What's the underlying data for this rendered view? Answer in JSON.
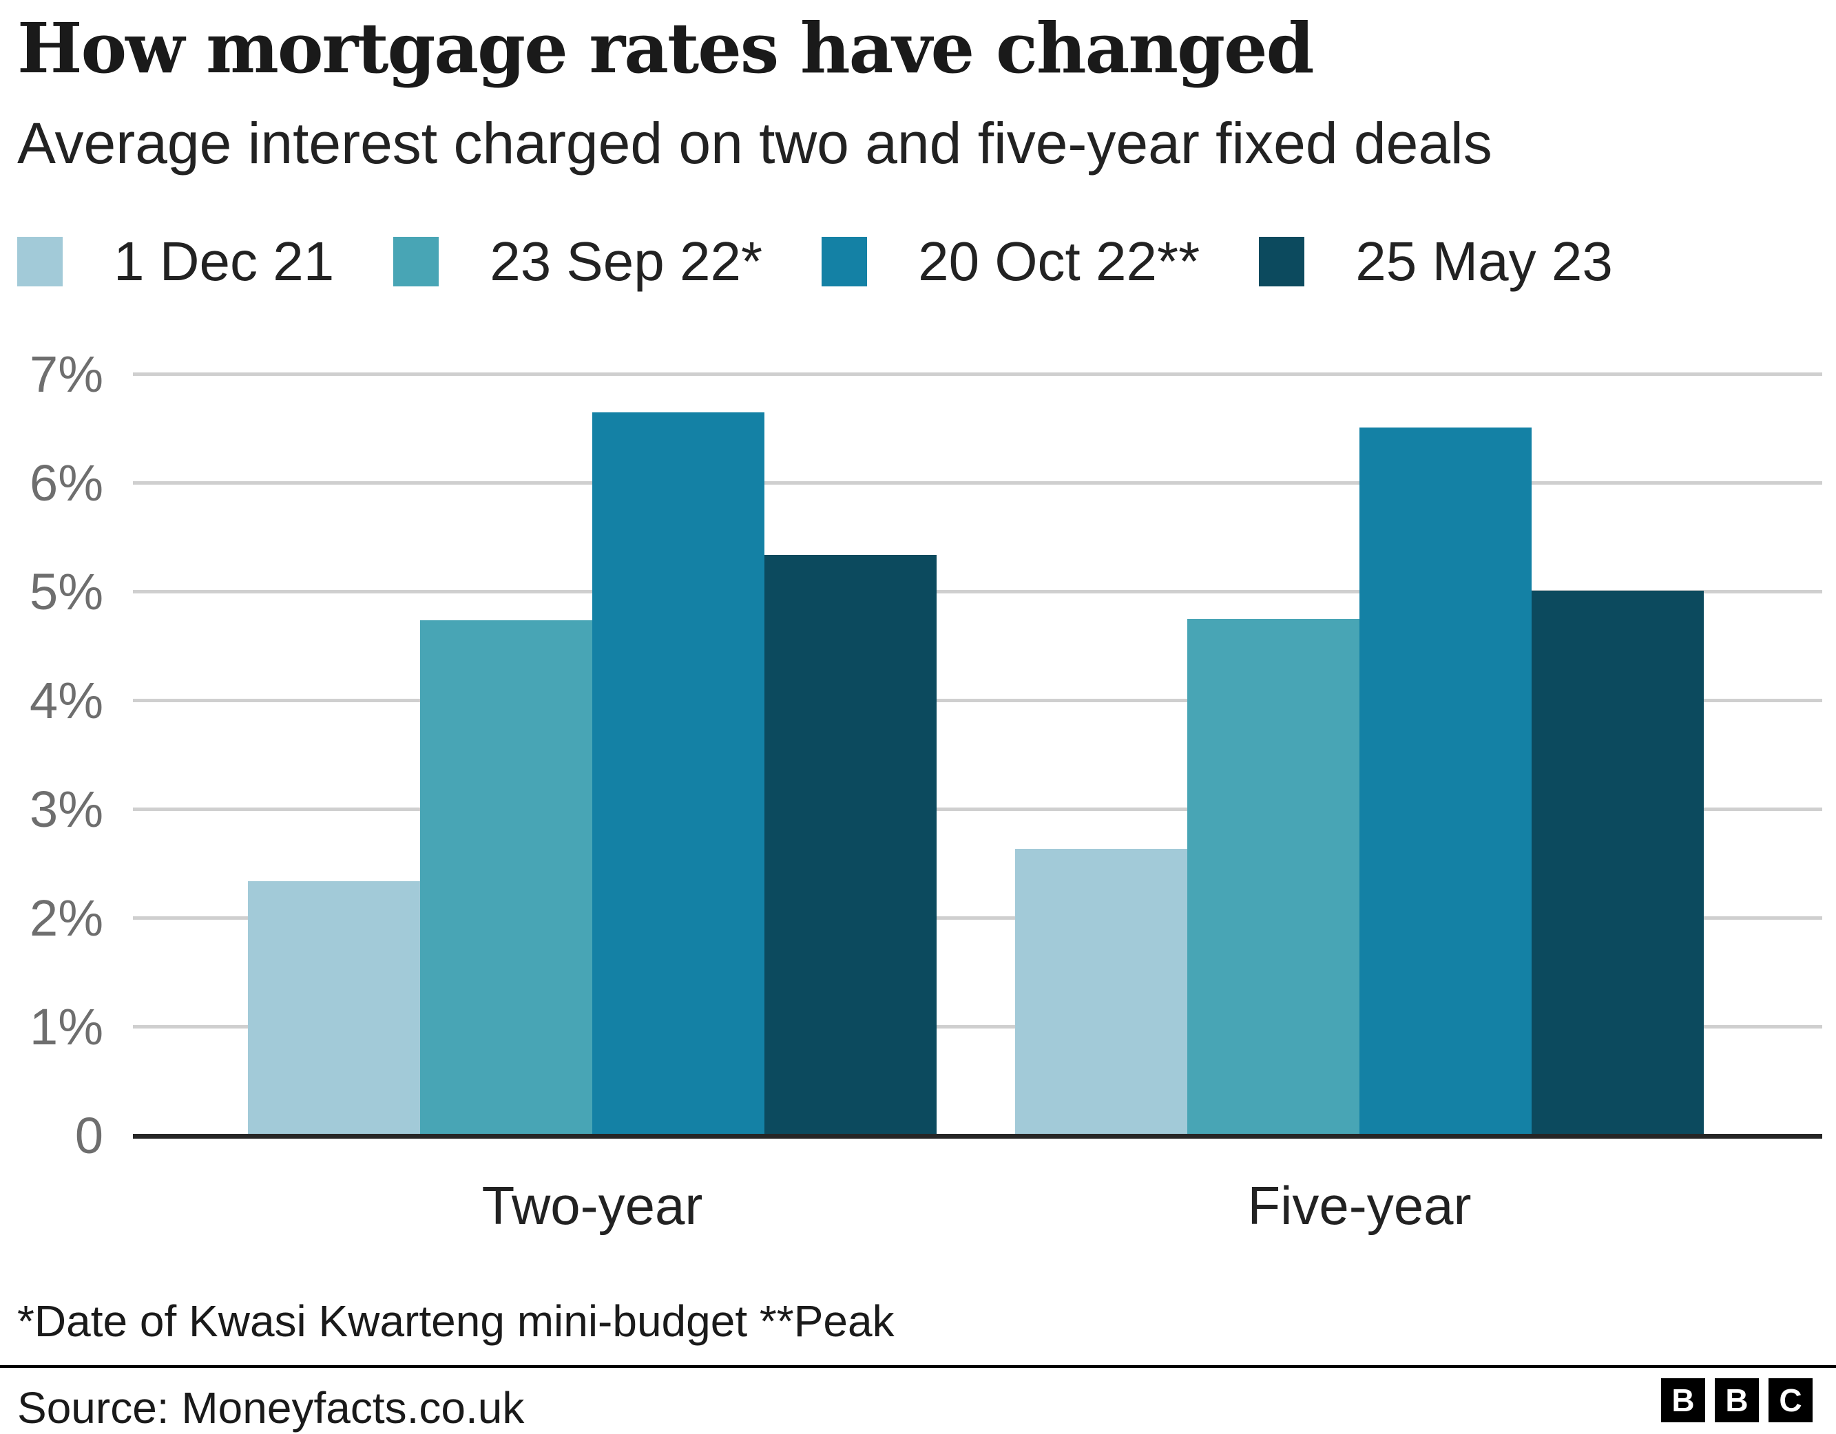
{
  "header": {
    "title": "How mortgage rates have changed",
    "subtitle": "Average interest charged on two and five-year fixed deals"
  },
  "chart_data": {
    "type": "bar",
    "title": "How mortgage rates have changed",
    "subtitle": "Average interest charged on two and five-year fixed deals",
    "categories": [
      "Two-year",
      "Five-year"
    ],
    "series": [
      {
        "name": "1 Dec 21",
        "color": "#a2cad8",
        "values": [
          2.34,
          2.64
        ]
      },
      {
        "name": "23 Sep 22*",
        "color": "#48a5b5",
        "values": [
          4.74,
          4.75
        ]
      },
      {
        "name": "20 Oct 22**",
        "color": "#1481a5",
        "values": [
          6.65,
          6.51
        ]
      },
      {
        "name": "25 May 23",
        "color": "#0c4a5e",
        "values": [
          5.34,
          5.01
        ]
      }
    ],
    "ylabel": "",
    "xlabel": "",
    "ylim": [
      0,
      7
    ],
    "yticks": [
      {
        "value": 7,
        "label": "7%"
      },
      {
        "value": 6,
        "label": "6%"
      },
      {
        "value": 5,
        "label": "5%"
      },
      {
        "value": 4,
        "label": "4%"
      },
      {
        "value": 3,
        "label": "3%"
      },
      {
        "value": 2,
        "label": "2%"
      },
      {
        "value": 1,
        "label": "1%"
      },
      {
        "value": 0,
        "label": "0"
      }
    ],
    "grid": true,
    "legend_position": "top"
  },
  "footnote": "*Date of Kwasi Kwarteng mini-budget **Peak",
  "source": "Source: Moneyfacts.co.uk",
  "logo": {
    "letters": [
      "B",
      "B",
      "C"
    ]
  },
  "colors": {
    "grid": "#cfcfcf",
    "axis": "#262626",
    "tick_text": "#6e6e6e",
    "text": "#1a1a1a",
    "background": "#ffffff"
  }
}
